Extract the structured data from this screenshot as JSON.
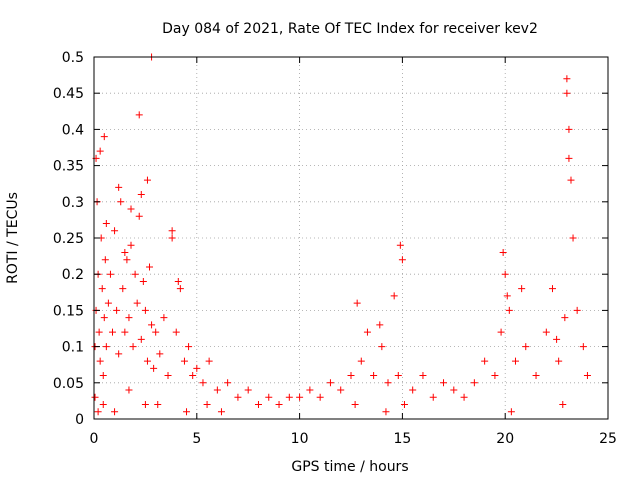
{
  "chart_data": {
    "type": "scatter",
    "title": "Day 084 of 2021, Rate Of TEC Index for receiver kev2",
    "xlabel": "GPS time / hours",
    "ylabel": "ROTI / TECUs",
    "xlim": [
      0,
      25
    ],
    "ylim": [
      0,
      0.5
    ],
    "x_ticks": [
      0,
      5,
      10,
      15,
      20,
      25
    ],
    "x_tick_labels": [
      "0",
      "5",
      "10",
      "15",
      "20",
      "25"
    ],
    "y_ticks": [
      0,
      0.05,
      0.1,
      0.15,
      0.2,
      0.25,
      0.3,
      0.35,
      0.4,
      0.45,
      0.5
    ],
    "y_tick_labels": [
      "0",
      "0.05",
      "0.1",
      "0.15",
      "0.2",
      "0.25",
      "0.3",
      "0.35",
      "0.4",
      "0.45",
      "0.5"
    ],
    "grid": true,
    "marker": "+",
    "series": [
      {
        "name": "ROTI",
        "color": "#ff0000",
        "x": [
          0.05,
          0.1,
          0.15,
          0.2,
          0.25,
          0.3,
          0.35,
          0.4,
          0.45,
          0.5,
          0.55,
          0.6,
          0.7,
          0.8,
          0.9,
          1.0,
          1.1,
          1.2,
          1.3,
          1.4,
          1.5,
          1.6,
          1.7,
          1.8,
          1.9,
          2.0,
          2.1,
          2.2,
          2.3,
          2.4,
          2.5,
          2.6,
          2.7,
          2.8,
          2.9,
          3.0,
          3.2,
          3.4,
          3.6,
          3.8,
          4.0,
          4.2,
          4.4,
          4.6,
          4.8,
          5.0,
          5.3,
          5.6,
          6.0,
          6.5,
          7.0,
          7.5,
          8.0,
          8.5,
          9.0,
          9.5,
          10.0,
          10.5,
          11.0,
          11.5,
          12.0,
          12.5,
          12.8,
          13.0,
          13.3,
          13.6,
          14.0,
          14.3,
          14.6,
          14.8,
          15.0,
          15.5,
          16.0,
          16.5,
          17.0,
          17.5,
          18.0,
          18.5,
          19.0,
          19.5,
          19.8,
          20.0,
          20.2,
          20.5,
          20.8,
          21.0,
          21.5,
          22.0,
          22.3,
          22.6,
          22.9,
          23.0,
          23.1,
          23.3,
          23.5,
          23.8,
          24.0,
          0.3,
          0.5,
          1.2,
          1.8,
          2.2,
          2.6,
          2.8,
          0.1,
          0.6,
          1.5,
          2.3,
          3.8,
          4.1,
          13.9,
          14.9,
          19.9,
          20.1,
          22.5,
          23.0,
          23.1,
          23.2,
          0.05,
          0.2,
          0.45,
          1.0,
          1.7,
          2.5,
          3.1,
          4.5,
          5.5,
          6.2,
          12.7,
          14.2,
          15.1,
          20.3,
          22.8
        ],
        "y": [
          0.1,
          0.15,
          0.3,
          0.2,
          0.12,
          0.08,
          0.25,
          0.18,
          0.06,
          0.14,
          0.22,
          0.1,
          0.16,
          0.2,
          0.12,
          0.26,
          0.15,
          0.09,
          0.3,
          0.18,
          0.12,
          0.22,
          0.14,
          0.24,
          0.1,
          0.2,
          0.16,
          0.28,
          0.11,
          0.19,
          0.15,
          0.08,
          0.21,
          0.13,
          0.07,
          0.12,
          0.09,
          0.14,
          0.06,
          0.25,
          0.12,
          0.18,
          0.08,
          0.1,
          0.06,
          0.07,
          0.05,
          0.08,
          0.04,
          0.05,
          0.03,
          0.04,
          0.02,
          0.03,
          0.02,
          0.03,
          0.03,
          0.04,
          0.03,
          0.05,
          0.04,
          0.06,
          0.16,
          0.08,
          0.12,
          0.06,
          0.1,
          0.05,
          0.17,
          0.06,
          0.22,
          0.04,
          0.06,
          0.03,
          0.05,
          0.04,
          0.03,
          0.05,
          0.08,
          0.06,
          0.12,
          0.2,
          0.15,
          0.08,
          0.18,
          0.1,
          0.06,
          0.12,
          0.18,
          0.08,
          0.14,
          0.47,
          0.4,
          0.25,
          0.15,
          0.1,
          0.06,
          0.37,
          0.39,
          0.32,
          0.29,
          0.42,
          0.33,
          0.5,
          0.36,
          0.27,
          0.23,
          0.31,
          0.26,
          0.19,
          0.13,
          0.24,
          0.23,
          0.17,
          0.11,
          0.45,
          0.36,
          0.33,
          0.03,
          0.01,
          0.02,
          0.01,
          0.04,
          0.02,
          0.02,
          0.01,
          0.02,
          0.01,
          0.02,
          0.01,
          0.02,
          0.01,
          0.02
        ]
      }
    ]
  }
}
